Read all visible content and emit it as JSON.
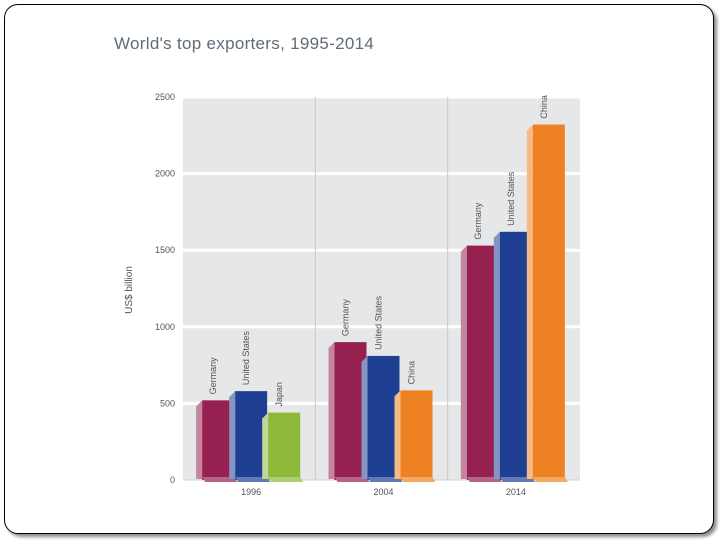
{
  "title": "World's top exporters, 1995-2014",
  "chart_data": {
    "type": "bar",
    "title": "World's top exporters, 1995-2014",
    "xlabel": "",
    "ylabel": "US$ billion",
    "ylim": [
      0,
      2500
    ],
    "yticks": [
      0,
      500,
      1000,
      1500,
      2000,
      2500
    ],
    "grid": true,
    "legend": "none",
    "groups": [
      {
        "category": "1996",
        "bars": [
          {
            "label": "Germany",
            "value": 520,
            "color": "#962150"
          },
          {
            "label": "United States",
            "value": 580,
            "color": "#1f3f93"
          },
          {
            "label": "Japan",
            "value": 440,
            "color": "#8db83a"
          }
        ]
      },
      {
        "category": "2004",
        "bars": [
          {
            "label": "Germany",
            "value": 900,
            "color": "#962150"
          },
          {
            "label": "United States",
            "value": 810,
            "color": "#1f3f93"
          },
          {
            "label": "China",
            "value": 585,
            "color": "#ee8222"
          }
        ]
      },
      {
        "category": "2014",
        "bars": [
          {
            "label": "Germany",
            "value": 1530,
            "color": "#962150"
          },
          {
            "label": "United States",
            "value": 1620,
            "color": "#1f3f93"
          },
          {
            "label": "China",
            "value": 2320,
            "color": "#ee8222"
          }
        ]
      }
    ]
  }
}
